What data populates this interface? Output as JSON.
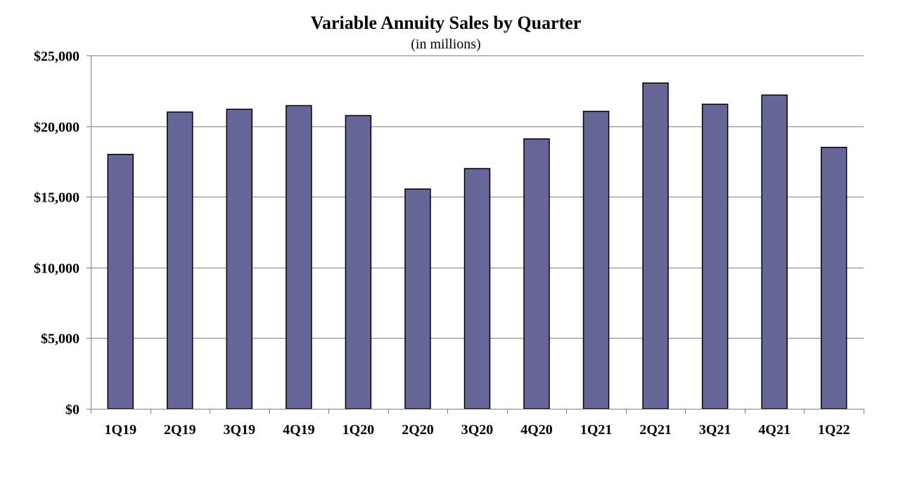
{
  "chart_data": {
    "type": "bar",
    "title": "Variable Annuity Sales by Quarter",
    "subtitle": "(in millions)",
    "xlabel": "",
    "ylabel": "",
    "categories": [
      "1Q19",
      "2Q19",
      "3Q19",
      "4Q19",
      "1Q20",
      "2Q20",
      "3Q20",
      "4Q20",
      "1Q21",
      "2Q21",
      "3Q21",
      "4Q21",
      "1Q22"
    ],
    "values": [
      18000,
      21000,
      21200,
      21450,
      20750,
      15550,
      17000,
      19100,
      21050,
      23050,
      21550,
      22200,
      18500
    ],
    "ylim": [
      0,
      25000
    ],
    "yticks": [
      0,
      5000,
      10000,
      15000,
      20000,
      25000
    ],
    "ytick_labels": [
      "$0",
      "$5,000",
      "$10,000",
      "$15,000",
      "$20,000",
      "$25,000"
    ],
    "grid": true,
    "legend": "none",
    "colors": {
      "bar_fill": "#666699",
      "bar_stroke": "#000000",
      "grid": "#808080",
      "axis": "#808080"
    }
  }
}
